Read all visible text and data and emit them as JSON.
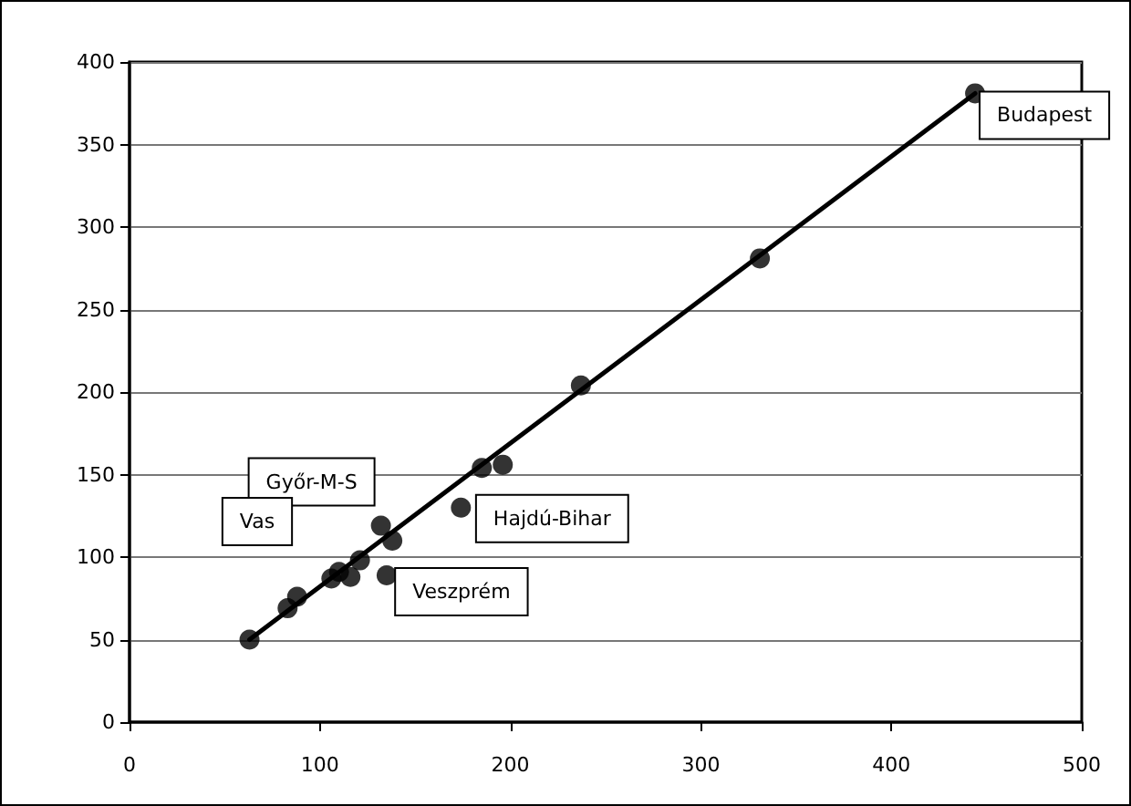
{
  "chart_data": {
    "type": "scatter",
    "xlim": [
      0,
      500
    ],
    "xticks": [
      0,
      100,
      200,
      300,
      400,
      500
    ],
    "ylim": [
      0,
      400
    ],
    "yticks": [
      0,
      50,
      100,
      150,
      200,
      250,
      300,
      350,
      400
    ],
    "grid": "y",
    "marker": "circle",
    "series": [
      {
        "color": "#000000",
        "x": [
          63,
          83,
          88,
          106,
          110,
          116,
          121,
          132,
          138,
          135,
          174,
          185,
          196,
          237,
          331,
          444
        ],
        "values": [
          50,
          69,
          76,
          87,
          91,
          88,
          98,
          119,
          110,
          89,
          130,
          154,
          156,
          204,
          281,
          381
        ]
      },
      {
        "type": "line",
        "color": "#000000",
        "marker": "none",
        "line_style": "solid",
        "x": [
          63,
          444
        ],
        "values": [
          50,
          381
        ]
      }
    ],
    "annotations": [
      {
        "text": "Budapest",
        "x": 444,
        "y": 381
      },
      {
        "text": "Győr-M-S",
        "x": 132,
        "y": 119
      },
      "Vas",
      {
        "text": "Hajdú-Bihar",
        "x": 174,
        "y": 130
      },
      {
        "text": "Veszprém",
        "x": 135,
        "y": 89
      }
    ]
  }
}
